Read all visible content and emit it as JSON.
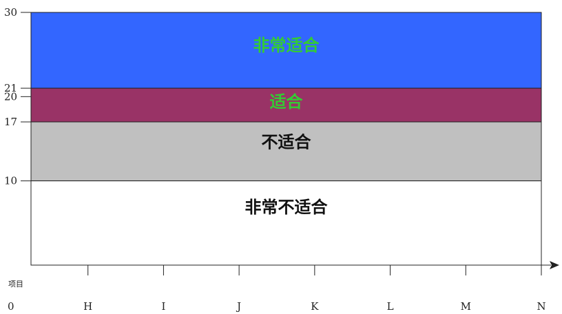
{
  "chart_data": {
    "type": "area",
    "title": "",
    "xlabel": "项目",
    "ylabel": "",
    "categories": [
      "0",
      "H",
      "I",
      "J",
      "K",
      "L",
      "M",
      "N"
    ],
    "ylim": [
      0,
      30
    ],
    "y_ticks": [
      10,
      17,
      20,
      21,
      30
    ],
    "grid": false,
    "bands": [
      {
        "label": "非常适合",
        "from": 21,
        "to": 30,
        "color": "#3366ff",
        "text_color": "#33cc33"
      },
      {
        "label": "适合",
        "from": 17,
        "to": 21,
        "color": "#993366",
        "text_color": "#33cc33"
      },
      {
        "label": "不适合",
        "from": 10,
        "to": 17,
        "color": "#c0c0c0",
        "text_color": "#111111"
      },
      {
        "label": "非常不适合",
        "from": 0,
        "to": 10,
        "color": "#ffffff",
        "text_color": "#111111"
      }
    ],
    "band_label_y": {
      "非常适合": 26,
      "适合": 19.3,
      "不适合": 14.5,
      "非常不适合": 6.8
    }
  }
}
